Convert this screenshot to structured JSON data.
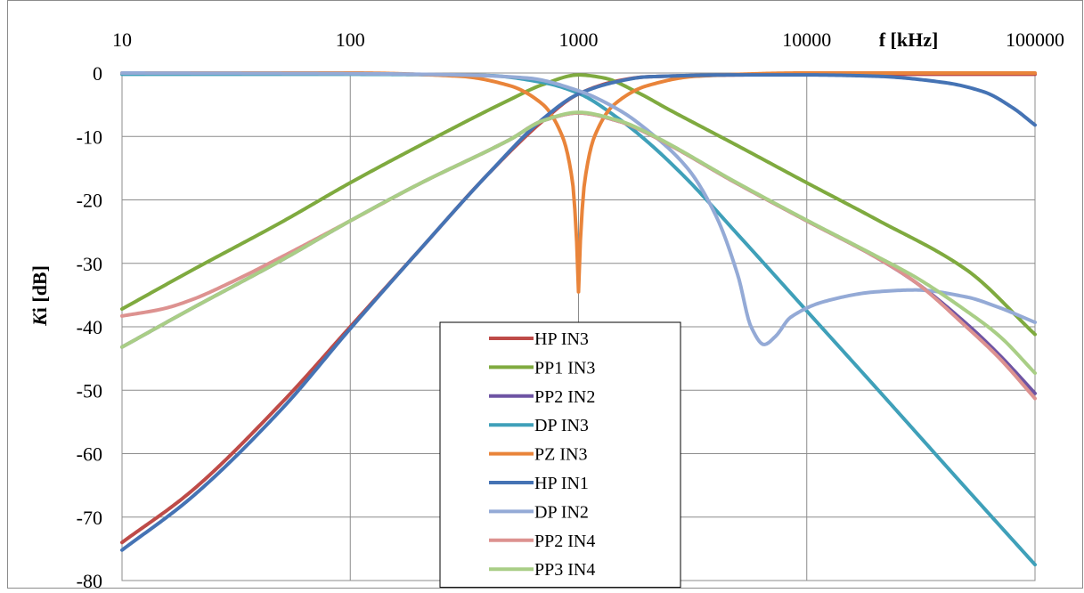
{
  "chart_data": {
    "type": "line",
    "x_scale": "log",
    "xlim": [
      10,
      100000
    ],
    "ylim": [
      -80,
      0
    ],
    "xlabel": "f [kHz]",
    "ylabel_italic": "K",
    "ylabel_rest": "i [dB]",
    "x_ticks": [
      10,
      100,
      1000,
      10000,
      100000
    ],
    "x_tick_labels": [
      "10",
      "100",
      "1000",
      "10000",
      "100000"
    ],
    "y_ticks": [
      0,
      -10,
      -20,
      -30,
      -40,
      -50,
      -60,
      -70,
      -80
    ],
    "y_tick_labels": [
      "0",
      "-10",
      "-20",
      "-30",
      "-40",
      "-50",
      "-60",
      "-70",
      "-80"
    ],
    "grid": true,
    "legend_position": "bottom-center",
    "series": [
      {
        "name": "HP IN3",
        "color": "#BE4B48",
        "points": [
          [
            10,
            -74
          ],
          [
            20,
            -66
          ],
          [
            50,
            -52
          ],
          [
            100,
            -40
          ],
          [
            200,
            -28
          ],
          [
            400,
            -16
          ],
          [
            700,
            -7.5
          ],
          [
            1000,
            -3.3
          ],
          [
            1500,
            -1.2
          ],
          [
            2000,
            -0.6
          ],
          [
            5000,
            -0.3
          ],
          [
            10000,
            -0.2
          ],
          [
            100000,
            -0.2
          ]
        ]
      },
      {
        "name": "PP1 IN3",
        "color": "#7FAA3F",
        "points": [
          [
            10,
            -37.2
          ],
          [
            20,
            -31.2
          ],
          [
            50,
            -23.5
          ],
          [
            100,
            -17.3
          ],
          [
            200,
            -11.5
          ],
          [
            500,
            -4.2
          ],
          [
            700,
            -1.8
          ],
          [
            1000,
            -0.3
          ],
          [
            1300,
            -0.8
          ],
          [
            1800,
            -3
          ],
          [
            2500,
            -5.8
          ],
          [
            5000,
            -11.5
          ],
          [
            10000,
            -17.3
          ],
          [
            20000,
            -23
          ],
          [
            50000,
            -31
          ],
          [
            100000,
            -41.2
          ]
        ]
      },
      {
        "name": "PP2 IN2",
        "color": "#6E54A3",
        "points": [
          [
            10,
            -43.2
          ],
          [
            20,
            -37.2
          ],
          [
            50,
            -29.5
          ],
          [
            100,
            -23.3
          ],
          [
            200,
            -17.5
          ],
          [
            500,
            -10.5
          ],
          [
            700,
            -7.5
          ],
          [
            1000,
            -6.3
          ],
          [
            1500,
            -7.6
          ],
          [
            2000,
            -9.5
          ],
          [
            5000,
            -17.5
          ],
          [
            10000,
            -23.3
          ],
          [
            20000,
            -29
          ],
          [
            30000,
            -33
          ],
          [
            50000,
            -39.5
          ],
          [
            70000,
            -44.5
          ],
          [
            100000,
            -50.5
          ]
        ]
      },
      {
        "name": "DP IN3",
        "color": "#3FA0B9",
        "points": [
          [
            10,
            -0.2
          ],
          [
            100,
            -0.2
          ],
          [
            400,
            -0.4
          ],
          [
            700,
            -1.5
          ],
          [
            1000,
            -3.2
          ],
          [
            1500,
            -7.2
          ],
          [
            2000,
            -10.8
          ],
          [
            3000,
            -16.8
          ],
          [
            5000,
            -25.5
          ],
          [
            10000,
            -37.5
          ],
          [
            20000,
            -49.5
          ],
          [
            50000,
            -65.5
          ],
          [
            100000,
            -77.5
          ]
        ]
      },
      {
        "name": "PZ IN3",
        "color": "#E9843A",
        "points": [
          [
            10,
            0
          ],
          [
            100,
            0
          ],
          [
            300,
            -0.5
          ],
          [
            500,
            -2
          ],
          [
            700,
            -5
          ],
          [
            850,
            -10
          ],
          [
            940,
            -17
          ],
          [
            980,
            -26
          ],
          [
            1000,
            -34.5
          ],
          [
            1020,
            -26
          ],
          [
            1065,
            -17
          ],
          [
            1175,
            -10
          ],
          [
            1430,
            -5
          ],
          [
            2000,
            -2
          ],
          [
            3300,
            -0.5
          ],
          [
            10000,
            0
          ],
          [
            100000,
            0
          ]
        ]
      },
      {
        "name": "HP IN1",
        "color": "#4573B4",
        "points": [
          [
            10,
            -75.2
          ],
          [
            20,
            -67
          ],
          [
            50,
            -53
          ],
          [
            100,
            -40.3
          ],
          [
            200,
            -28
          ],
          [
            400,
            -16
          ],
          [
            700,
            -7.2
          ],
          [
            1000,
            -3.3
          ],
          [
            1500,
            -1.3
          ],
          [
            2000,
            -0.6
          ],
          [
            5000,
            -0.3
          ],
          [
            10000,
            -0.3
          ],
          [
            20000,
            -0.5
          ],
          [
            40000,
            -1.5
          ],
          [
            60000,
            -3
          ],
          [
            80000,
            -5.5
          ],
          [
            100000,
            -8.2
          ]
        ]
      },
      {
        "name": "DP IN2",
        "color": "#94AAD6",
        "points": [
          [
            10,
            0
          ],
          [
            100,
            -0.1
          ],
          [
            300,
            -0.3
          ],
          [
            600,
            -0.8
          ],
          [
            1000,
            -2.8
          ],
          [
            1500,
            -5.8
          ],
          [
            2000,
            -9
          ],
          [
            3000,
            -15
          ],
          [
            4000,
            -22.5
          ],
          [
            5000,
            -32
          ],
          [
            5700,
            -40
          ],
          [
            6500,
            -42.8
          ],
          [
            7300,
            -41.5
          ],
          [
            8500,
            -38.5
          ],
          [
            12000,
            -36
          ],
          [
            20000,
            -34.5
          ],
          [
            30000,
            -34.2
          ],
          [
            50000,
            -35.3
          ],
          [
            70000,
            -37
          ],
          [
            100000,
            -39.3
          ]
        ]
      },
      {
        "name": "PP2 IN4",
        "color": "#DD9290",
        "points": [
          [
            10,
            -38.3
          ],
          [
            15,
            -37.2
          ],
          [
            20,
            -35.8
          ],
          [
            30,
            -33
          ],
          [
            50,
            -29
          ],
          [
            100,
            -23.3
          ],
          [
            200,
            -17.5
          ],
          [
            500,
            -10.5
          ],
          [
            700,
            -7.5
          ],
          [
            1000,
            -6.3
          ],
          [
            1500,
            -7.6
          ],
          [
            2000,
            -9.5
          ],
          [
            5000,
            -17.5
          ],
          [
            10000,
            -23.3
          ],
          [
            20000,
            -29
          ],
          [
            30000,
            -33
          ],
          [
            50000,
            -40
          ],
          [
            70000,
            -45
          ],
          [
            100000,
            -51.3
          ]
        ]
      },
      {
        "name": "PP3 IN4",
        "color": "#A9CE86",
        "points": [
          [
            10,
            -43.2
          ],
          [
            20,
            -37.2
          ],
          [
            50,
            -29.5
          ],
          [
            100,
            -23.3
          ],
          [
            200,
            -17.5
          ],
          [
            500,
            -10.5
          ],
          [
            700,
            -7.5
          ],
          [
            1000,
            -6.2
          ],
          [
            1500,
            -7.5
          ],
          [
            2000,
            -9.4
          ],
          [
            5000,
            -17.4
          ],
          [
            10000,
            -23.2
          ],
          [
            20000,
            -28.8
          ],
          [
            30000,
            -32.2
          ],
          [
            50000,
            -37.5
          ],
          [
            70000,
            -41.5
          ],
          [
            100000,
            -47.3
          ]
        ]
      }
    ]
  }
}
